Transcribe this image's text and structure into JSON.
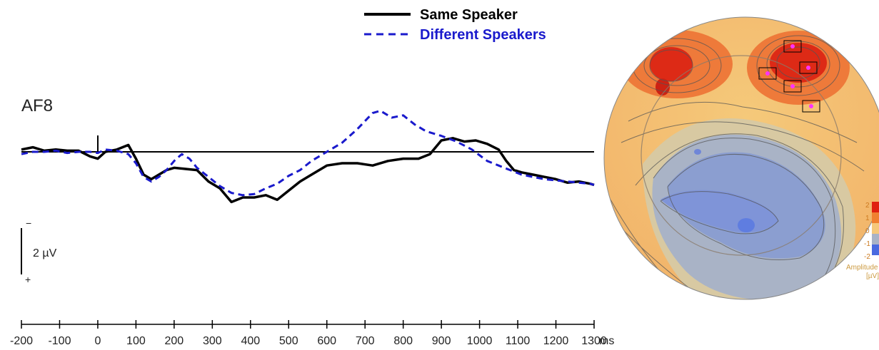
{
  "chart_data": [
    {
      "type": "line",
      "channel_label": "AF8",
      "x_unit": "ms",
      "x_ticks": [
        -200,
        -100,
        0,
        100,
        200,
        300,
        400,
        500,
        600,
        700,
        800,
        900,
        1000,
        1100,
        1200,
        1300
      ],
      "xlim": [
        -200,
        1300
      ],
      "ylim": [
        -2.3,
        3.4
      ],
      "y_axis_inverted": true,
      "scale_bar": {
        "label": "2 µV",
        "neg_sign": "−",
        "pos_sign": "+"
      },
      "legend_position": "top-center",
      "series": [
        {
          "name": "Same Speaker",
          "color": "#000000",
          "style": "solid",
          "x": [
            -200,
            -170,
            -140,
            -110,
            -80,
            -50,
            -20,
            0,
            20,
            50,
            80,
            100,
            120,
            140,
            160,
            180,
            200,
            230,
            260,
            290,
            320,
            350,
            380,
            410,
            440,
            470,
            500,
            530,
            560,
            600,
            640,
            680,
            720,
            760,
            800,
            840,
            870,
            900,
            930,
            960,
            990,
            1020,
            1050,
            1070,
            1090,
            1110,
            1140,
            1170,
            1200,
            1230,
            1260,
            1290,
            1300
          ],
          "y": [
            0.1,
            0.2,
            0.05,
            0.1,
            0.05,
            0.05,
            -0.2,
            -0.3,
            0.0,
            0.1,
            0.3,
            -0.3,
            -1.0,
            -1.2,
            -1.0,
            -0.8,
            -0.7,
            -0.75,
            -0.8,
            -1.3,
            -1.6,
            -2.2,
            -2.0,
            -2.0,
            -1.9,
            -2.1,
            -1.7,
            -1.3,
            -1.0,
            -0.6,
            -0.5,
            -0.5,
            -0.6,
            -0.4,
            -0.3,
            -0.3,
            -0.1,
            0.5,
            0.6,
            0.45,
            0.5,
            0.35,
            0.1,
            -0.4,
            -0.8,
            -0.9,
            -1.0,
            -1.1,
            -1.2,
            -1.35,
            -1.3,
            -1.4,
            -1.45
          ]
        },
        {
          "name": "Different Speakers",
          "color": "#1a1acc",
          "style": "dashed",
          "x": [
            -200,
            -170,
            -140,
            -110,
            -80,
            -50,
            -20,
            0,
            20,
            50,
            80,
            100,
            120,
            140,
            160,
            180,
            200,
            220,
            240,
            260,
            290,
            320,
            350,
            380,
            410,
            440,
            470,
            500,
            530,
            560,
            600,
            640,
            680,
            720,
            740,
            770,
            800,
            830,
            860,
            900,
            940,
            980,
            1020,
            1050,
            1080,
            1110,
            1140,
            1170,
            1200,
            1230,
            1260,
            1290,
            1300
          ],
          "y": [
            -0.1,
            0.0,
            0.0,
            0.05,
            -0.05,
            0.0,
            0.0,
            -0.05,
            0.1,
            0.05,
            -0.1,
            -0.5,
            -1.1,
            -1.3,
            -1.1,
            -0.8,
            -0.4,
            -0.1,
            -0.3,
            -0.7,
            -1.1,
            -1.5,
            -1.8,
            -1.9,
            -1.85,
            -1.6,
            -1.4,
            -1.05,
            -0.8,
            -0.4,
            0.0,
            0.4,
            1.0,
            1.7,
            1.8,
            1.5,
            1.6,
            1.2,
            0.9,
            0.7,
            0.45,
            0.1,
            -0.4,
            -0.6,
            -0.8,
            -1.0,
            -1.1,
            -1.2,
            -1.25,
            -1.3,
            -1.35,
            -1.4,
            -1.45
          ]
        }
      ]
    },
    {
      "type": "heatmap",
      "topomap": true,
      "colorbar": {
        "tick_labels": [
          "2",
          "1",
          "0",
          "-1",
          "-2"
        ],
        "title_line1": "Amplitude",
        "title_line2": "[µV]",
        "range": [
          -2,
          2
        ]
      }
    }
  ]
}
